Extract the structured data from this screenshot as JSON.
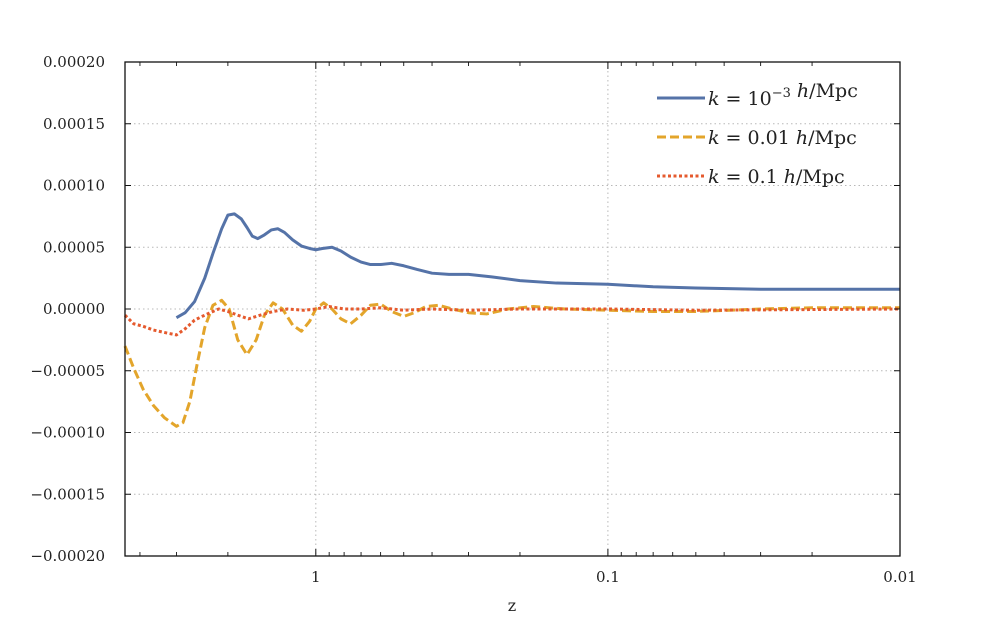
{
  "chart_data": {
    "type": "line",
    "xlabel": "z",
    "ylabel": "",
    "x_scale": "log",
    "x_reversed": true,
    "xlim": [
      4.5,
      0.01
    ],
    "ylim": [
      -0.0002,
      0.0002
    ],
    "x_ticks": [
      {
        "value": 1,
        "label": "1"
      },
      {
        "value": 0.1,
        "label": "0.1"
      },
      {
        "value": 0.01,
        "label": "0.01"
      }
    ],
    "y_ticks": [
      {
        "value": 0.0002,
        "label": "0.00020"
      },
      {
        "value": 0.00015,
        "label": "0.00015"
      },
      {
        "value": 0.0001,
        "label": "0.00010"
      },
      {
        "value": 5e-05,
        "label": "0.00005"
      },
      {
        "value": 0.0,
        "label": "0.00000"
      },
      {
        "value": -5e-05,
        "label": "−0.00005"
      },
      {
        "value": -0.0001,
        "label": "−0.00010"
      },
      {
        "value": -0.00015,
        "label": "−0.00015"
      },
      {
        "value": -0.0002,
        "label": "−0.00020"
      }
    ],
    "grid": true,
    "legend_position": "top-right",
    "series": [
      {
        "name": "k = 10⁻³ h/Mpc",
        "color": "#5573a8",
        "dash": "solid",
        "x": [
          3.0,
          2.8,
          2.6,
          2.4,
          2.25,
          2.1,
          2.0,
          1.9,
          1.8,
          1.72,
          1.65,
          1.58,
          1.5,
          1.42,
          1.35,
          1.28,
          1.2,
          1.12,
          1.05,
          1.0,
          0.95,
          0.88,
          0.82,
          0.76,
          0.7,
          0.65,
          0.6,
          0.55,
          0.5,
          0.45,
          0.4,
          0.35,
          0.3,
          0.25,
          0.2,
          0.15,
          0.1,
          0.07,
          0.05,
          0.03,
          0.02,
          0.01
        ],
        "y": [
          -7e-06,
          -3e-06,
          6e-06,
          2.5e-05,
          4.5e-05,
          6.5e-05,
          7.6e-05,
          7.7e-05,
          7.3e-05,
          6.6e-05,
          5.9e-05,
          5.7e-05,
          6e-05,
          6.4e-05,
          6.5e-05,
          6.2e-05,
          5.6e-05,
          5.1e-05,
          4.9e-05,
          4.8e-05,
          4.9e-05,
          5e-05,
          4.7e-05,
          4.2e-05,
          3.8e-05,
          3.6e-05,
          3.6e-05,
          3.7e-05,
          3.5e-05,
          3.2e-05,
          2.9e-05,
          2.8e-05,
          2.8e-05,
          2.6e-05,
          2.3e-05,
          2.1e-05,
          2e-05,
          1.8e-05,
          1.7e-05,
          1.6e-05,
          1.6e-05,
          1.6e-05
        ]
      },
      {
        "name": "k = 0.01 h/Mpc",
        "color": "#e3a52b",
        "dash": "dashed",
        "x": [
          4.5,
          4.2,
          3.9,
          3.6,
          3.3,
          3.0,
          2.85,
          2.7,
          2.55,
          2.4,
          2.25,
          2.1,
          1.98,
          1.85,
          1.72,
          1.6,
          1.5,
          1.4,
          1.3,
          1.2,
          1.12,
          1.05,
          1.0,
          0.94,
          0.88,
          0.82,
          0.76,
          0.7,
          0.65,
          0.6,
          0.55,
          0.5,
          0.46,
          0.42,
          0.38,
          0.34,
          0.3,
          0.26,
          0.22,
          0.18,
          0.14,
          0.1,
          0.07,
          0.05,
          0.03,
          0.02,
          0.01
        ],
        "y": [
          -3e-05,
          -4.8e-05,
          -6.5e-05,
          -7.8e-05,
          -8.8e-05,
          -9.5e-05,
          -9.2e-05,
          -7.5e-05,
          -4.5e-05,
          -1.5e-05,
          3e-06,
          7e-06,
          0.0,
          -2.5e-05,
          -3.7e-05,
          -2.5e-05,
          -5e-06,
          5e-06,
          0.0,
          -1.3e-05,
          -1.8e-05,
          -1e-05,
          0.0,
          5e-06,
          0.0,
          -8e-06,
          -1.2e-05,
          -5e-06,
          3e-06,
          4e-06,
          -2e-06,
          -6e-06,
          -3e-06,
          2e-06,
          3e-06,
          0.0,
          -3e-06,
          -4e-06,
          0.0,
          2e-06,
          0.0,
          -1e-06,
          -2e-06,
          -2e-06,
          0.0,
          1e-06,
          1e-06
        ]
      },
      {
        "name": "k = 0.1 h/Mpc",
        "color": "#e55a2e",
        "dash": "dotted",
        "x": [
          4.5,
          4.2,
          3.9,
          3.6,
          3.3,
          3.0,
          2.8,
          2.6,
          2.45,
          2.3,
          2.15,
          2.0,
          1.85,
          1.7,
          1.55,
          1.4,
          1.25,
          1.1,
          1.0,
          0.9,
          0.8,
          0.7,
          0.6,
          0.5,
          0.4,
          0.3,
          0.2,
          0.1,
          0.05,
          0.01
        ],
        "y": [
          -5e-06,
          -1.2e-05,
          -1.4e-05,
          -1.7e-05,
          -1.9e-05,
          -2.1e-05,
          -1.6e-05,
          -9e-06,
          -6e-06,
          -3e-06,
          0.0,
          -2e-06,
          -5e-06,
          -8e-06,
          -5e-06,
          -2e-06,
          0.0,
          -1e-06,
          0.0,
          2e-06,
          0.0,
          0.0,
          1e-06,
          -1e-06,
          0.0,
          -1e-06,
          0.0,
          0.0,
          -1e-06,
          0.0
        ]
      }
    ]
  }
}
